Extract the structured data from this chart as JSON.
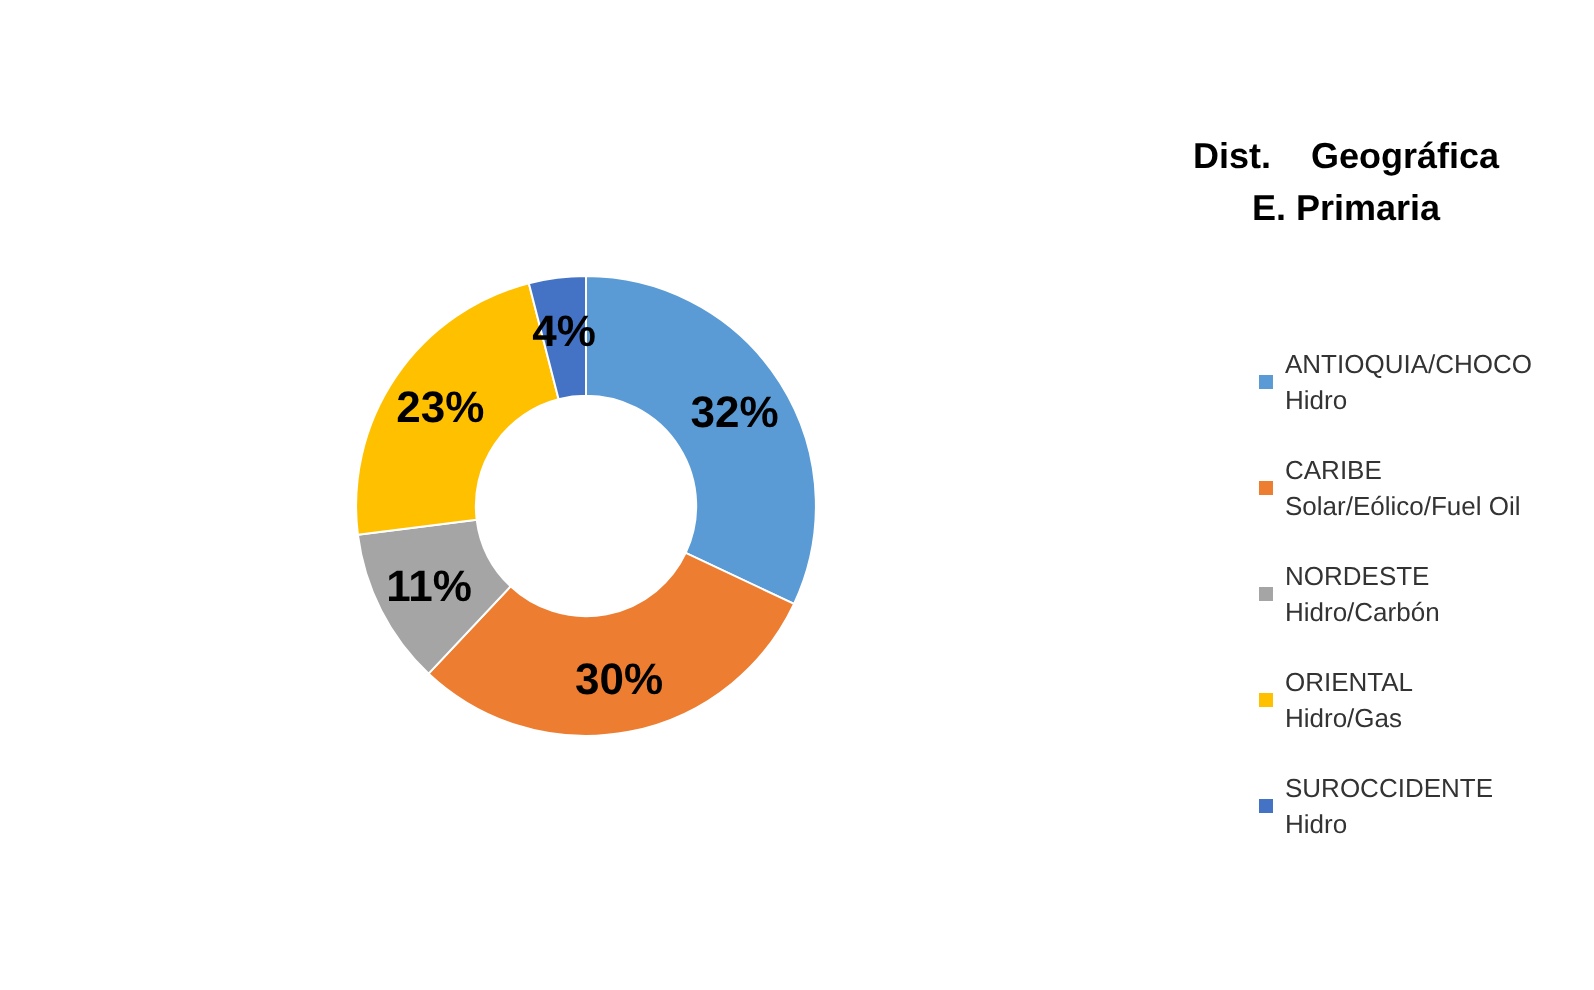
{
  "chart_data": {
    "type": "donut",
    "title": "Dist.    Geográfica\nE. Primaria",
    "categories": [
      "ANTIOQUIA/CHOCO\nHidro",
      "CARIBE\nSolar/Eólico/Fuel Oil",
      "NORDESTE\nHidro/Carbón",
      "ORIENTAL\nHidro/Gas",
      "SUROCCIDENTE\nHidro"
    ],
    "values": [
      32,
      30,
      11,
      23,
      4
    ],
    "colors": [
      "#5b9bd5",
      "#ed7d31",
      "#a5a5a5",
      "#ffc000",
      "#4472c4"
    ],
    "value_labels": [
      "32%",
      "30%",
      "11%",
      "23%",
      "4%"
    ],
    "legend": "right"
  }
}
